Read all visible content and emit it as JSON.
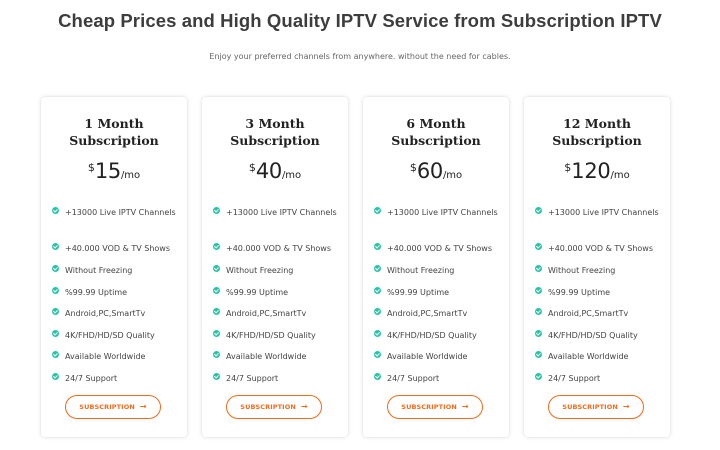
{
  "header": {
    "title": "Cheap Prices and High Quality IPTV Service from Subscription IPTV",
    "subtitle": "Enjoy your preferred channels from anywhere. without the need for cables."
  },
  "colors": {
    "accent": "#f26a1b",
    "check": "#29c4a6"
  },
  "plans": [
    {
      "name_line1": "1 Month",
      "name_line2": "Subscription",
      "currency": "$",
      "amount": "15",
      "period": "/mo",
      "features": [
        "+13000 Live IPTV Channels",
        "+40.000 VOD & TV Shows",
        "Without Freezing",
        "%99.99 Uptime",
        "Android,PC,SmartTv",
        "4K/FHD/HD/SD Quality",
        "Available Worldwide",
        "24/7 Support"
      ],
      "button_label": "SUBSCRIPTION",
      "button_icon": "arrow-right-icon"
    },
    {
      "name_line1": "3 Month",
      "name_line2": "Subscription",
      "currency": "$",
      "amount": "40",
      "period": "/mo",
      "features": [
        "+13000 Live IPTV Channels",
        "+40.000 VOD & TV Shows",
        "Without Freezing",
        "%99.99 Uptime",
        "Android,PC,SmartTv",
        "4K/FHD/HD/SD Quality",
        "Available Worldwide",
        "24/7 Support"
      ],
      "button_label": "SUBSCRIPTION",
      "button_icon": "arrow-right-icon"
    },
    {
      "name_line1": "6 Month",
      "name_line2": "Subscription",
      "currency": "$",
      "amount": "60",
      "period": "/mo",
      "features": [
        "+13000 Live IPTV Channels",
        "+40.000 VOD & TV Shows",
        "Without Freezing",
        "%99.99 Uptime",
        "Android,PC,SmartTv",
        "4K/FHD/HD/SD Quality",
        "Available Worldwide",
        "24/7 Support"
      ],
      "button_label": "SUBSCRIPTION",
      "button_icon": "arrow-right-icon"
    },
    {
      "name_line1": "12 Month",
      "name_line2": "Subscription",
      "currency": "$",
      "amount": "120",
      "period": "/mo",
      "features": [
        "+13000 Live IPTV Channels",
        "+40.000 VOD & TV Shows",
        "Without Freezing",
        "%99.99 Uptime",
        "Android,PC,SmartTv",
        "4K/FHD/HD/SD Quality",
        "Available Worldwide",
        "24/7 Support"
      ],
      "button_label": "SUBSCRIPTION",
      "button_icon": "arrow-right-icon"
    }
  ]
}
